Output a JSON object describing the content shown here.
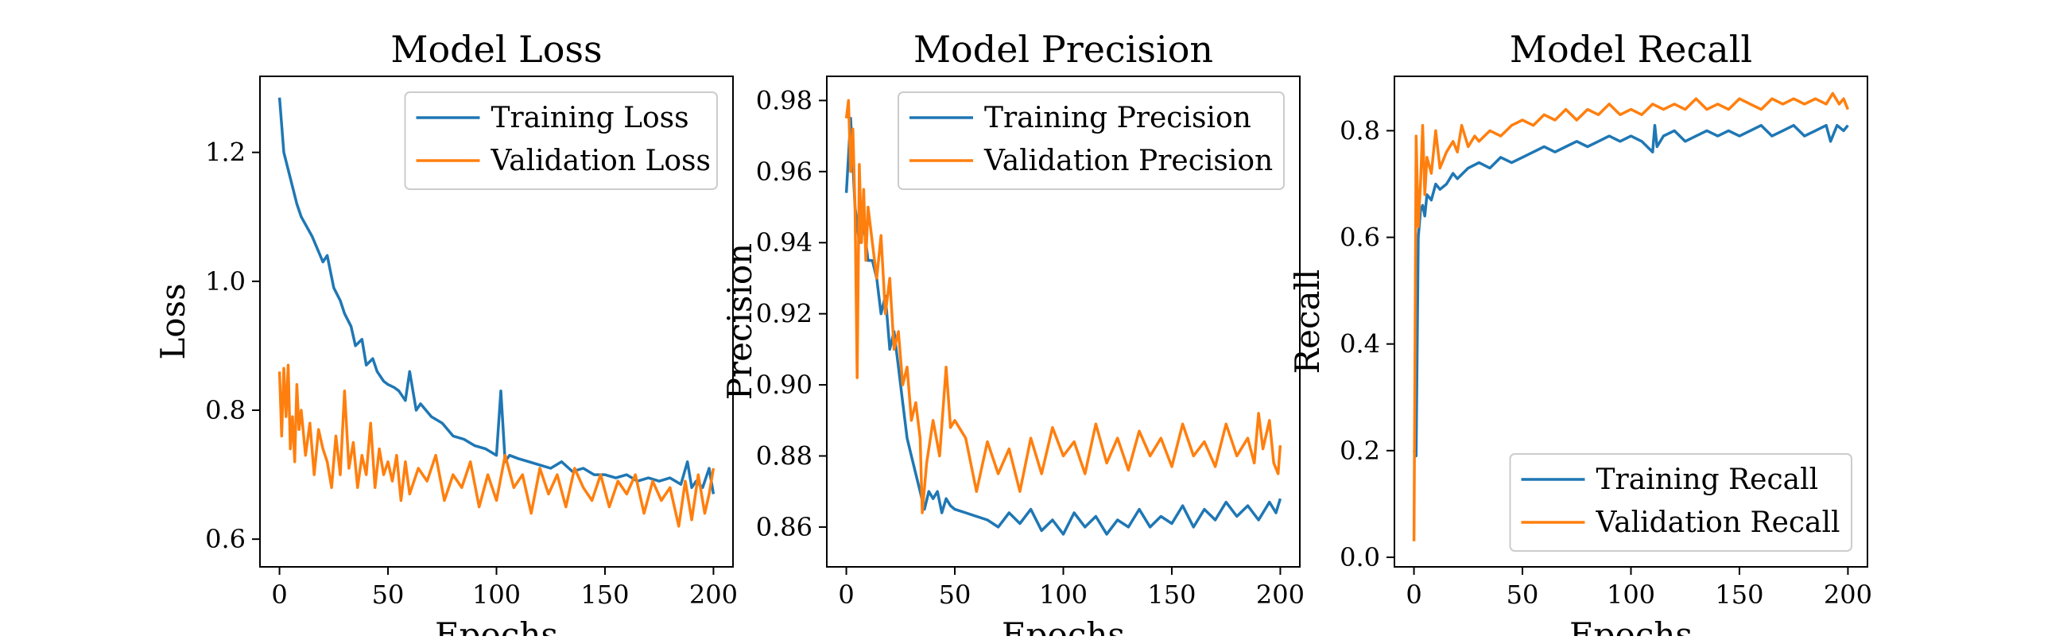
{
  "figure": {
    "background": "#ffffff"
  },
  "colors": {
    "training": "#1f77b4",
    "validation": "#ff7f0e"
  },
  "chart_data": [
    {
      "type": "line",
      "title": "Model Loss",
      "xlabel": "Epochs",
      "ylabel": "Loss",
      "xlim": [
        -9,
        209
      ],
      "ylim": [
        0.557,
        1.318
      ],
      "xticks": [
        0,
        50,
        100,
        150,
        200
      ],
      "xtick_labels": [
        "0",
        "50",
        "100",
        "150",
        "200"
      ],
      "yticks": [
        0.6,
        0.8,
        1.0,
        1.2
      ],
      "ytick_labels": [
        "0.6",
        "0.8",
        "1.0",
        "1.2"
      ],
      "legend": {
        "position": "upper right"
      },
      "series": [
        {
          "name": "Training Loss",
          "color": "#1f77b4",
          "x": [
            0,
            2,
            5,
            8,
            10,
            15,
            20,
            22,
            25,
            28,
            30,
            33,
            35,
            38,
            40,
            43,
            45,
            48,
            50,
            53,
            55,
            58,
            60,
            63,
            65,
            70,
            75,
            80,
            85,
            90,
            95,
            100,
            102,
            104,
            106,
            110,
            115,
            120,
            125,
            130,
            135,
            140,
            145,
            150,
            155,
            160,
            165,
            170,
            175,
            180,
            185,
            188,
            190,
            192,
            195,
            198,
            200
          ],
          "y": [
            1.285,
            1.2,
            1.16,
            1.12,
            1.1,
            1.07,
            1.03,
            1.04,
            0.99,
            0.97,
            0.95,
            0.93,
            0.9,
            0.91,
            0.87,
            0.88,
            0.86,
            0.845,
            0.84,
            0.835,
            0.83,
            0.815,
            0.86,
            0.8,
            0.81,
            0.79,
            0.78,
            0.76,
            0.755,
            0.745,
            0.74,
            0.73,
            0.83,
            0.72,
            0.73,
            0.725,
            0.72,
            0.715,
            0.71,
            0.72,
            0.705,
            0.71,
            0.7,
            0.7,
            0.695,
            0.7,
            0.69,
            0.695,
            0.69,
            0.695,
            0.685,
            0.72,
            0.68,
            0.69,
            0.68,
            0.71,
            0.67
          ]
        },
        {
          "name": "Validation Loss",
          "color": "#ff7f0e",
          "x": [
            0,
            1,
            2,
            3,
            4,
            5,
            6,
            7,
            8,
            9,
            10,
            12,
            14,
            16,
            18,
            20,
            22,
            24,
            26,
            28,
            30,
            32,
            34,
            36,
            38,
            40,
            42,
            44,
            46,
            48,
            50,
            52,
            54,
            56,
            58,
            60,
            64,
            68,
            72,
            76,
            80,
            84,
            88,
            92,
            96,
            100,
            104,
            108,
            112,
            116,
            120,
            124,
            128,
            132,
            136,
            140,
            144,
            148,
            152,
            156,
            160,
            164,
            168,
            172,
            176,
            180,
            184,
            187,
            190,
            193,
            196,
            198,
            200
          ],
          "y": [
            0.86,
            0.76,
            0.865,
            0.79,
            0.87,
            0.74,
            0.79,
            0.72,
            0.84,
            0.77,
            0.8,
            0.73,
            0.78,
            0.7,
            0.77,
            0.74,
            0.72,
            0.68,
            0.76,
            0.7,
            0.83,
            0.71,
            0.75,
            0.68,
            0.73,
            0.7,
            0.78,
            0.68,
            0.74,
            0.7,
            0.72,
            0.69,
            0.73,
            0.66,
            0.72,
            0.67,
            0.71,
            0.69,
            0.73,
            0.66,
            0.7,
            0.68,
            0.72,
            0.65,
            0.7,
            0.66,
            0.73,
            0.68,
            0.7,
            0.64,
            0.71,
            0.67,
            0.7,
            0.65,
            0.71,
            0.68,
            0.66,
            0.7,
            0.65,
            0.69,
            0.67,
            0.7,
            0.64,
            0.69,
            0.66,
            0.68,
            0.62,
            0.69,
            0.63,
            0.7,
            0.64,
            0.67,
            0.71
          ]
        }
      ]
    },
    {
      "type": "line",
      "title": "Model Precision",
      "xlabel": "Epochs",
      "ylabel": "Precision",
      "xlim": [
        -9,
        209
      ],
      "ylim": [
        0.8488,
        0.9868
      ],
      "xticks": [
        0,
        50,
        100,
        150,
        200
      ],
      "xtick_labels": [
        "0",
        "50",
        "100",
        "150",
        "200"
      ],
      "yticks": [
        0.86,
        0.88,
        0.9,
        0.92,
        0.94,
        0.96,
        0.98
      ],
      "ytick_labels": [
        "0.86",
        "0.88",
        "0.90",
        "0.92",
        "0.94",
        "0.96",
        "0.98"
      ],
      "legend": {
        "position": "upper right"
      },
      "series": [
        {
          "name": "Training Precision",
          "color": "#1f77b4",
          "x": [
            0,
            2,
            4,
            6,
            8,
            10,
            12,
            14,
            16,
            18,
            20,
            22,
            24,
            26,
            28,
            30,
            32,
            34,
            36,
            38,
            40,
            42,
            44,
            46,
            48,
            50,
            55,
            60,
            65,
            70,
            75,
            80,
            85,
            90,
            95,
            100,
            105,
            110,
            115,
            120,
            125,
            130,
            135,
            140,
            145,
            150,
            155,
            160,
            165,
            170,
            175,
            180,
            185,
            190,
            195,
            198,
            200
          ],
          "y": [
            0.954,
            0.975,
            0.95,
            0.94,
            0.945,
            0.935,
            0.935,
            0.93,
            0.92,
            0.925,
            0.91,
            0.915,
            0.905,
            0.895,
            0.885,
            0.88,
            0.875,
            0.87,
            0.865,
            0.87,
            0.868,
            0.87,
            0.864,
            0.868,
            0.866,
            0.865,
            0.864,
            0.863,
            0.862,
            0.86,
            0.864,
            0.861,
            0.865,
            0.859,
            0.862,
            0.858,
            0.864,
            0.86,
            0.863,
            0.858,
            0.862,
            0.86,
            0.865,
            0.86,
            0.863,
            0.861,
            0.866,
            0.86,
            0.865,
            0.862,
            0.867,
            0.863,
            0.866,
            0.862,
            0.867,
            0.864,
            0.868
          ]
        },
        {
          "name": "Validation Precision",
          "color": "#ff7f0e",
          "x": [
            0,
            1,
            2,
            3,
            4,
            5,
            6,
            7,
            8,
            9,
            10,
            12,
            14,
            16,
            18,
            20,
            22,
            24,
            26,
            28,
            30,
            32,
            34,
            35,
            37,
            40,
            43,
            46,
            48,
            50,
            55,
            60,
            65,
            70,
            75,
            80,
            85,
            90,
            95,
            100,
            105,
            110,
            115,
            120,
            125,
            130,
            135,
            140,
            145,
            150,
            155,
            160,
            165,
            170,
            175,
            180,
            185,
            188,
            190,
            192,
            195,
            197,
            199,
            200
          ],
          "y": [
            0.975,
            0.98,
            0.96,
            0.972,
            0.95,
            0.902,
            0.962,
            0.94,
            0.955,
            0.935,
            0.95,
            0.94,
            0.93,
            0.942,
            0.92,
            0.93,
            0.91,
            0.915,
            0.9,
            0.905,
            0.89,
            0.895,
            0.885,
            0.864,
            0.878,
            0.89,
            0.88,
            0.905,
            0.888,
            0.89,
            0.885,
            0.87,
            0.884,
            0.875,
            0.882,
            0.87,
            0.885,
            0.875,
            0.888,
            0.88,
            0.884,
            0.875,
            0.889,
            0.878,
            0.885,
            0.876,
            0.887,
            0.88,
            0.885,
            0.877,
            0.889,
            0.88,
            0.884,
            0.877,
            0.889,
            0.88,
            0.885,
            0.878,
            0.892,
            0.882,
            0.89,
            0.878,
            0.875,
            0.883
          ]
        }
      ]
    },
    {
      "type": "line",
      "title": "Model Recall",
      "xlabel": "Epochs",
      "ylabel": "Recall",
      "xlim": [
        -9,
        209
      ],
      "ylim": [
        -0.018,
        0.902
      ],
      "xticks": [
        0,
        50,
        100,
        150,
        200
      ],
      "xtick_labels": [
        "0",
        "50",
        "100",
        "150",
        "200"
      ],
      "yticks": [
        0.0,
        0.2,
        0.4,
        0.6,
        0.8
      ],
      "ytick_labels": [
        "0.0",
        "0.2",
        "0.4",
        "0.6",
        "0.8"
      ],
      "legend": {
        "position": "lower right"
      },
      "series": [
        {
          "name": "Training Recall",
          "color": "#1f77b4",
          "x": [
            0,
            1,
            2,
            3,
            4,
            5,
            6,
            8,
            10,
            12,
            15,
            18,
            20,
            25,
            30,
            35,
            40,
            45,
            50,
            55,
            60,
            65,
            70,
            75,
            80,
            85,
            90,
            95,
            100,
            105,
            110,
            111,
            112,
            115,
            120,
            125,
            130,
            135,
            140,
            145,
            150,
            155,
            160,
            165,
            170,
            175,
            180,
            185,
            190,
            192,
            195,
            198,
            200
          ],
          "y": [
            0.2,
            0.19,
            0.6,
            0.65,
            0.66,
            0.64,
            0.68,
            0.67,
            0.7,
            0.69,
            0.7,
            0.72,
            0.71,
            0.73,
            0.74,
            0.73,
            0.75,
            0.74,
            0.75,
            0.76,
            0.77,
            0.76,
            0.77,
            0.78,
            0.77,
            0.78,
            0.79,
            0.78,
            0.79,
            0.78,
            0.76,
            0.81,
            0.77,
            0.79,
            0.8,
            0.78,
            0.79,
            0.8,
            0.79,
            0.8,
            0.79,
            0.8,
            0.81,
            0.79,
            0.8,
            0.81,
            0.79,
            0.8,
            0.81,
            0.78,
            0.81,
            0.8,
            0.81
          ]
        },
        {
          "name": "Validation Recall",
          "color": "#ff7f0e",
          "x": [
            0,
            1,
            2,
            3,
            4,
            5,
            6,
            8,
            10,
            12,
            15,
            18,
            20,
            22,
            25,
            28,
            30,
            35,
            40,
            45,
            50,
            55,
            60,
            65,
            70,
            75,
            80,
            85,
            90,
            95,
            100,
            105,
            110,
            115,
            120,
            125,
            130,
            135,
            140,
            145,
            150,
            155,
            160,
            165,
            170,
            175,
            180,
            185,
            190,
            193,
            196,
            198,
            200
          ],
          "y": [
            0.03,
            0.79,
            0.62,
            0.7,
            0.81,
            0.68,
            0.75,
            0.72,
            0.8,
            0.73,
            0.76,
            0.78,
            0.76,
            0.81,
            0.77,
            0.79,
            0.78,
            0.8,
            0.79,
            0.81,
            0.82,
            0.81,
            0.83,
            0.82,
            0.84,
            0.82,
            0.84,
            0.83,
            0.85,
            0.83,
            0.84,
            0.83,
            0.85,
            0.84,
            0.85,
            0.84,
            0.86,
            0.84,
            0.85,
            0.84,
            0.86,
            0.85,
            0.84,
            0.86,
            0.85,
            0.86,
            0.85,
            0.86,
            0.85,
            0.87,
            0.85,
            0.86,
            0.84
          ]
        }
      ]
    }
  ]
}
